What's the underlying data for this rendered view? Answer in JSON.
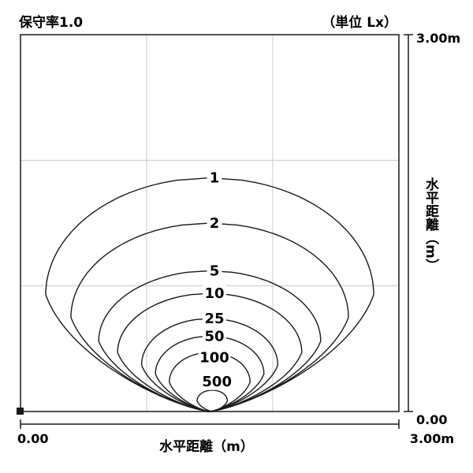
{
  "header": {
    "maintenance_factor": "保守率1.0",
    "unit": "（単位 Lx）"
  },
  "chart_data": {
    "type": "contour",
    "title": "",
    "xlabel": "水平距離（m）",
    "ylabel": "水平距離（m）",
    "xlim": [
      0,
      3
    ],
    "ylim": [
      0,
      3
    ],
    "x_tick_labels": [
      "0.00",
      "3.00m"
    ],
    "y_tick_labels": [
      "0.00",
      "3.00m"
    ],
    "grid": true,
    "source_point": {
      "x": 0,
      "y": 0
    },
    "contours": [
      {
        "level": "1",
        "vx": 1.5,
        "vy": 1.86,
        "rx": 1.3,
        "ry": 1.86,
        "label_y": 1.86
      },
      {
        "level": "2",
        "vx": 1.5,
        "vy": 1.5,
        "rx": 1.1,
        "ry": 1.5,
        "label_y": 1.5
      },
      {
        "level": "5",
        "vx": 1.5,
        "vy": 1.12,
        "rx": 0.88,
        "ry": 1.12,
        "label_y": 1.12
      },
      {
        "level": "10",
        "vx": 1.5,
        "vy": 0.94,
        "rx": 0.73,
        "ry": 0.94,
        "label_y": 0.94
      },
      {
        "level": "25",
        "vx": 1.5,
        "vy": 0.74,
        "rx": 0.54,
        "ry": 0.74,
        "label_y": 0.74
      },
      {
        "level": "50",
        "vx": 1.5,
        "vy": 0.6,
        "rx": 0.43,
        "ry": 0.6,
        "label_y": 0.6
      },
      {
        "level": "100",
        "vx": 1.5,
        "vy": 0.47,
        "rx": 0.32,
        "ry": 0.47,
        "label_y": 0.43
      },
      {
        "level": "500",
        "vx": 1.52,
        "vy": 0.17,
        "rx": 0.12,
        "ry": 0.17,
        "label_y": 0.24
      }
    ]
  }
}
